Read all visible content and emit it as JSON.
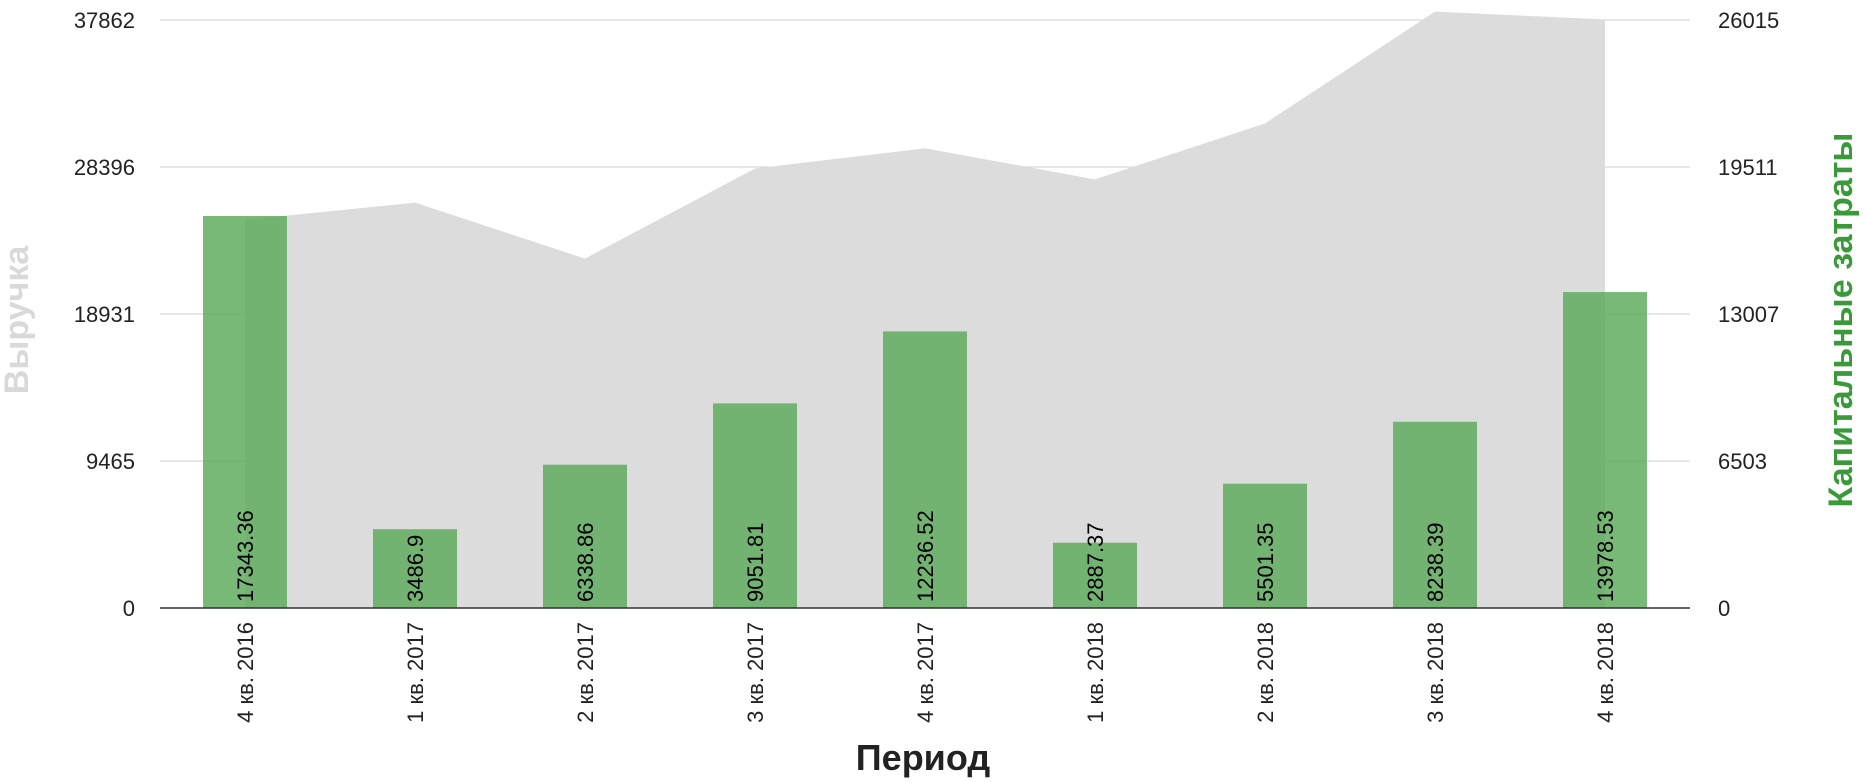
{
  "chart_data": {
    "type": "bar+area",
    "title": "",
    "xlabel": "Период",
    "ylabel_left": "Выручка",
    "ylabel_right": "Капитальные затраты",
    "categories": [
      "4 кв. 2016",
      "1 кв. 2017",
      "2 кв. 2017",
      "3 кв. 2017",
      "4 кв. 2017",
      "1 кв. 2018",
      "2 кв. 2018",
      "3 кв. 2018",
      "4 кв. 2018"
    ],
    "left_axis": {
      "ticks": [
        "0",
        "9465",
        "18931",
        "28396",
        "37862"
      ],
      "ylim": [
        0,
        37862
      ]
    },
    "right_axis": {
      "ticks": [
        "0",
        "6503",
        "13007",
        "19511",
        "26015"
      ],
      "ylim": [
        0,
        26015
      ]
    },
    "series": [
      {
        "name": "Выручка",
        "type": "area",
        "axis": "left",
        "color": "#dcdcdc",
        "values": [
          25000,
          26100,
          22500,
          28300,
          29600,
          27600,
          31200,
          38400,
          37900
        ]
      },
      {
        "name": "Капитальные затраты",
        "type": "bar",
        "axis": "right",
        "color": "#5aa95a",
        "values": [
          17343.36,
          3486.9,
          6338.86,
          9051.81,
          12236.52,
          2887.37,
          5501.35,
          8238.39,
          13978.53
        ],
        "labels": [
          "17343.36",
          "3486.9",
          "6338.86",
          "9051.81",
          "12236.52",
          "2887.37",
          "5501.35",
          "8238.39",
          "13978.53"
        ]
      }
    ],
    "grid": true,
    "legend": "none",
    "colors": {
      "left_title": "#d9d9d9",
      "right_title": "#3a9a3a",
      "grid": "#cfcfcf",
      "baseline": "#333333"
    }
  }
}
